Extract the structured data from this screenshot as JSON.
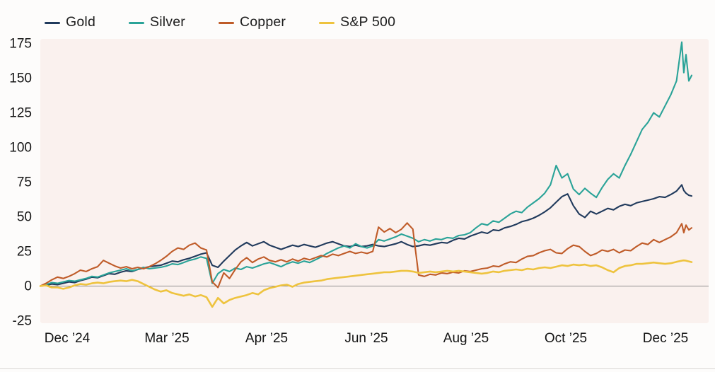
{
  "legend": {
    "items": [
      {
        "label": "Gold",
        "color": "#203a5c"
      },
      {
        "label": "Silver",
        "color": "#2aa398"
      },
      {
        "label": "Copper",
        "color": "#bf5b28"
      },
      {
        "label": "S&P 500",
        "color": "#eec33e"
      }
    ]
  },
  "chart_data": {
    "type": "line",
    "title": "",
    "xlabel": "",
    "ylabel": "",
    "ylim": [
      -25,
      180
    ],
    "grid": false,
    "legend_position": "top-left",
    "baseline_value": 0,
    "y_ticks": [
      175,
      150,
      125,
      100,
      75,
      50,
      25,
      0,
      -25
    ],
    "x_tick_labels": [
      "Dec ’24",
      "Mar ’25",
      "Apr ’25",
      "Jun ’25",
      "Aug ’25",
      "Oct ’25",
      "Dec ’25"
    ],
    "x": [
      0,
      0.0088,
      0.0176,
      0.0264,
      0.0352,
      0.044,
      0.0528,
      0.0616,
      0.0704,
      0.0792,
      0.088,
      0.0968,
      0.1056,
      0.1144,
      0.1232,
      0.132,
      0.1408,
      0.1496,
      0.1584,
      0.1672,
      0.176,
      0.1848,
      0.1936,
      0.2024,
      0.2112,
      0.22,
      0.2288,
      0.2376,
      0.2464,
      0.2552,
      0.264,
      0.2728,
      0.2816,
      0.2904,
      0.2992,
      0.308,
      0.3168,
      0.3256,
      0.3344,
      0.3432,
      0.352,
      0.3608,
      0.3696,
      0.3784,
      0.3872,
      0.396,
      0.4048,
      0.4136,
      0.4224,
      0.4312,
      0.44,
      0.4488,
      0.4576,
      0.4664,
      0.4752,
      0.484,
      0.4928,
      0.5016,
      0.5104,
      0.5192,
      0.528,
      0.5368,
      0.5456,
      0.5544,
      0.5632,
      0.572,
      0.5808,
      0.5896,
      0.5984,
      0.6072,
      0.616,
      0.6248,
      0.6336,
      0.6424,
      0.6512,
      0.66,
      0.6688,
      0.6776,
      0.6864,
      0.6952,
      0.704,
      0.7128,
      0.7216,
      0.7304,
      0.7392,
      0.748,
      0.7568,
      0.7656,
      0.7744,
      0.7832,
      0.792,
      0.8008,
      0.8096,
      0.8184,
      0.8272,
      0.836,
      0.8448,
      0.8536,
      0.8624,
      0.8712,
      0.88,
      0.8888,
      0.8976,
      0.9064,
      0.9152,
      0.924,
      0.9328,
      0.9416,
      0.9504,
      0.9592,
      0.968,
      0.9768,
      0.9848,
      0.988,
      0.9913,
      0.9957,
      1
    ],
    "series": [
      {
        "name": "Gold",
        "color": "#203a5c",
        "stroke_width": 2.1,
        "values": [
          0,
          0.5,
          1.5,
          1,
          2,
          3,
          2.5,
          4,
          5,
          6.5,
          6,
          7.5,
          9,
          8.5,
          10,
          11,
          10.5,
          12,
          13,
          14,
          14.5,
          15,
          16.5,
          18,
          17.5,
          19,
          20,
          21.5,
          23,
          24,
          15,
          13.5,
          18,
          22,
          26,
          29,
          31.5,
          29,
          30.5,
          32,
          29.5,
          28,
          26.5,
          28,
          29.5,
          28.5,
          30,
          29,
          28,
          29.5,
          31,
          32,
          30.5,
          29,
          28.5,
          29.5,
          28.5,
          29,
          30,
          29,
          28.5,
          29.5,
          30.5,
          32,
          30,
          28.5,
          29,
          30,
          29.5,
          30.5,
          31.5,
          31,
          33,
          34.5,
          34,
          36,
          37.5,
          39,
          38,
          40.5,
          40,
          42,
          43,
          44.5,
          46.5,
          47.5,
          49,
          51,
          53.5,
          56.5,
          60.5,
          64.5,
          66.5,
          58,
          52,
          49.5,
          54,
          52,
          54,
          56,
          55,
          57.5,
          59,
          58,
          60,
          61,
          62,
          63,
          64.5,
          64,
          66,
          68.5,
          73,
          69,
          67,
          65.5,
          65
        ]
      },
      {
        "name": "Silver",
        "color": "#2aa398",
        "stroke_width": 2.1,
        "values": [
          0,
          1,
          2.5,
          2,
          3,
          4,
          3.5,
          4.5,
          5.5,
          7,
          6.5,
          8,
          9.5,
          10.5,
          11.5,
          12.5,
          11,
          12,
          13.5,
          12.5,
          13,
          13.5,
          14.5,
          16,
          15.5,
          17,
          18.5,
          19.5,
          21,
          20,
          2,
          9,
          12,
          10.5,
          13,
          12,
          14,
          13,
          14.5,
          16,
          17,
          15.5,
          14,
          16,
          17.5,
          16.5,
          18,
          17,
          19,
          21,
          23.5,
          25.5,
          27.5,
          29,
          27.5,
          30.5,
          28.5,
          27.5,
          29,
          33.5,
          32.5,
          34,
          35.5,
          37.5,
          36,
          34.5,
          32,
          33.5,
          32.5,
          34,
          33.5,
          35,
          34.5,
          36.5,
          37,
          38.5,
          42,
          45,
          44,
          47,
          46,
          49,
          52,
          54,
          53,
          57,
          60,
          63,
          67,
          73,
          87,
          78,
          81,
          70,
          66,
          70.5,
          67,
          64,
          71,
          77,
          81,
          78,
          87,
          95,
          104,
          113,
          118,
          125,
          122,
          130,
          138,
          148,
          176,
          154,
          167,
          148,
          152
        ]
      },
      {
        "name": "Copper",
        "color": "#bf5b28",
        "stroke_width": 2.1,
        "values": [
          0,
          2,
          4.5,
          6.5,
          5.5,
          7,
          9,
          11.5,
          10.5,
          12.5,
          14,
          18.5,
          16.5,
          14.5,
          13,
          14,
          12.5,
          13.5,
          12.5,
          14,
          16,
          18.5,
          21.5,
          25,
          27.5,
          26.5,
          29.5,
          31,
          27.5,
          26,
          3,
          -1,
          9.5,
          5.5,
          12,
          17.5,
          20.5,
          17,
          19.5,
          21,
          18.5,
          17.5,
          19,
          17.5,
          19.5,
          18,
          20,
          19,
          20.5,
          22,
          21,
          23,
          22,
          23.5,
          25,
          23.5,
          24.5,
          23.5,
          25,
          42.5,
          39,
          41.5,
          38.5,
          41,
          45.5,
          41,
          8,
          7,
          8.5,
          8,
          9.5,
          9,
          10,
          9.5,
          11,
          10.5,
          11.5,
          12.5,
          13,
          14.5,
          14,
          16,
          17.5,
          17,
          19.5,
          21.5,
          22,
          24,
          25.5,
          26.5,
          24,
          23.5,
          27,
          29.5,
          28.5,
          25,
          22,
          23.5,
          26,
          25,
          26.5,
          24,
          26,
          25.5,
          28.5,
          31,
          30,
          33.5,
          31.5,
          33.5,
          35.5,
          38.5,
          45,
          38.5,
          44,
          40.5,
          42
        ]
      },
      {
        "name": "S&P 500",
        "color": "#eec33e",
        "stroke_width": 2.6,
        "values": [
          0,
          0.5,
          -1,
          -1,
          -2,
          -1,
          0.5,
          1.5,
          1,
          2,
          2.5,
          2,
          3,
          3.5,
          4,
          3.5,
          4.5,
          3.5,
          1.5,
          -0.5,
          -2.5,
          -4,
          -3,
          -5,
          -6,
          -7,
          -6,
          -7.5,
          -6.5,
          -8,
          -15,
          -8.5,
          -12.5,
          -10,
          -8.5,
          -7.5,
          -6.5,
          -5,
          -6,
          -3,
          -1.5,
          -0.5,
          0.5,
          1,
          -0.5,
          1.5,
          2.5,
          3,
          3.5,
          4,
          5,
          5.5,
          6,
          6.5,
          7,
          7.5,
          8,
          8.5,
          9,
          9.5,
          10,
          10,
          10.5,
          11,
          11,
          10.5,
          9.5,
          10,
          10.5,
          10,
          10.5,
          11,
          10.5,
          11,
          10.5,
          10,
          9.5,
          9,
          9.5,
          10.5,
          10,
          11,
          11.5,
          12,
          11.5,
          12.5,
          12,
          13,
          13.5,
          13,
          14,
          15,
          14.5,
          15.5,
          15,
          15.5,
          14.5,
          15,
          13.5,
          11.5,
          10,
          13,
          14.5,
          15,
          16,
          16,
          16.5,
          17,
          16.5,
          16,
          16.5,
          17.5,
          18.3,
          18.5,
          18.3,
          17.8,
          17.3
        ]
      }
    ]
  }
}
